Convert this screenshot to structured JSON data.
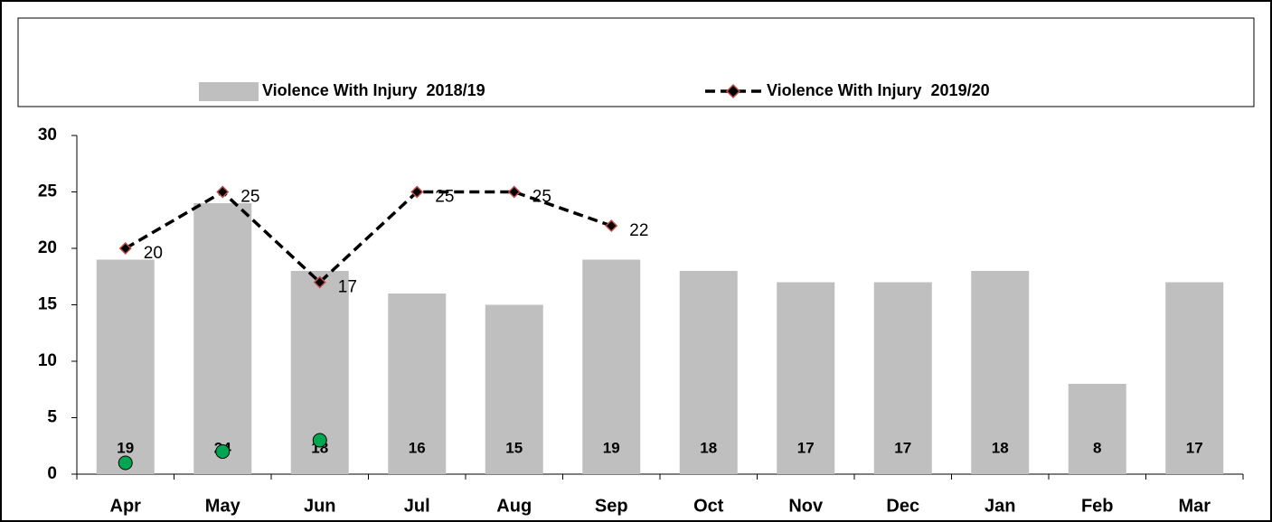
{
  "chart_data": {
    "type": "bar",
    "categories": [
      "Apr",
      "May",
      "Jun",
      "Jul",
      "Aug",
      "Sep",
      "Oct",
      "Nov",
      "Dec",
      "Jan",
      "Feb",
      "Mar"
    ],
    "series": [
      {
        "name": "Violence With Injury  2018/19",
        "type": "bar",
        "color": "#bfbfbf",
        "values": [
          19,
          24,
          18,
          16,
          15,
          19,
          18,
          17,
          17,
          18,
          8,
          17
        ]
      },
      {
        "name": "Violence With Injury  2019/20",
        "type": "line",
        "color": "#000000",
        "marker_edge": "#c0504d",
        "values": [
          20,
          25,
          17,
          25,
          25,
          22,
          null,
          null,
          null,
          null,
          null,
          null
        ]
      },
      {
        "type": "scatter",
        "color": "#00a651",
        "values": [
          1,
          2,
          3,
          null,
          null,
          null,
          null,
          null,
          null,
          null,
          null,
          null
        ]
      }
    ],
    "ylim": [
      0,
      30
    ],
    "yticks": [
      0,
      5,
      10,
      15,
      20,
      25,
      30
    ],
    "legend": "top"
  }
}
